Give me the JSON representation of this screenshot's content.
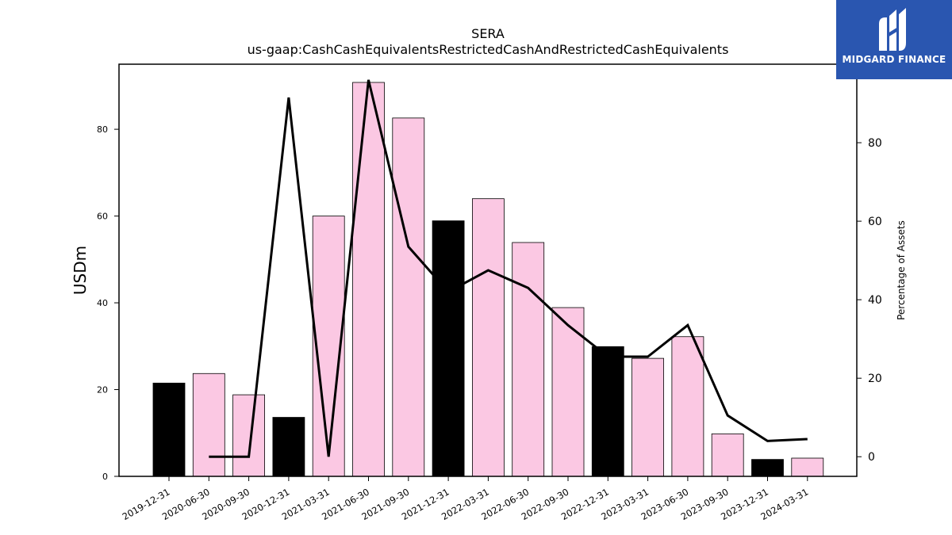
{
  "chart_data": {
    "type": "bar",
    "title": "SERA",
    "subtitle": "us-gaap:CashCashEquivalentsRestrictedCashAndRestrictedCashEquivalents",
    "ylabel": "USDm",
    "y2label": "Percentage of Assets",
    "ylim": [
      0,
      95
    ],
    "y2lim": [
      -5,
      100
    ],
    "yticks": [
      0,
      20,
      40,
      60,
      80
    ],
    "y2ticks": [
      0,
      20,
      40,
      60,
      80
    ],
    "categories": [
      "2019-12-31",
      "2020-06-30",
      "2020-09-30",
      "2020-12-31",
      "2021-03-31",
      "2021-06-30",
      "2021-09-30",
      "2021-12-31",
      "2022-03-31",
      "2022-06-30",
      "2022-09-30",
      "2022-12-31",
      "2023-03-31",
      "2023-06-30",
      "2023-09-30",
      "2023-12-31",
      "2024-03-31"
    ],
    "series": [
      {
        "kind": "bar",
        "values": [
          21.5,
          23.7,
          18.8,
          13.6,
          60.0,
          90.8,
          82.6,
          58.9,
          64.0,
          53.9,
          38.9,
          29.9,
          27.2,
          32.2,
          9.8,
          3.9,
          4.2
        ],
        "annual": [
          true,
          false,
          false,
          true,
          false,
          false,
          false,
          true,
          false,
          false,
          false,
          true,
          false,
          false,
          false,
          true,
          false
        ]
      },
      {
        "kind": "line",
        "axis": "right",
        "values": [
          null,
          0.0,
          0.0,
          91.5,
          0.0,
          96.0,
          53.5,
          42.0,
          47.5,
          43.0,
          33.5,
          25.5,
          25.5,
          33.5,
          10.5,
          4.0,
          4.5
        ]
      }
    ],
    "colors": {
      "annual_bar": "#000000",
      "quarter_bar": "#fbc8e3",
      "line": "#000000"
    },
    "grid": false
  },
  "logo": {
    "text": "MIDGARD FINANCE",
    "background": "#2a56b0"
  }
}
